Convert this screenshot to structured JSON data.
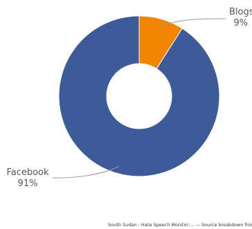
{
  "chart_data": {
    "type": "pie",
    "variant": "donut",
    "title": "",
    "slices": [
      {
        "label": "Blogs",
        "value": 9,
        "value_label": "9%",
        "color": "#f28500"
      },
      {
        "label": "Facebook",
        "value": 91,
        "value_label": "91%",
        "color": "#3d5a99"
      }
    ],
    "legend": "none"
  },
  "credit": "South Sudan - Hate Speech Monitor:... — Source breakdown from"
}
